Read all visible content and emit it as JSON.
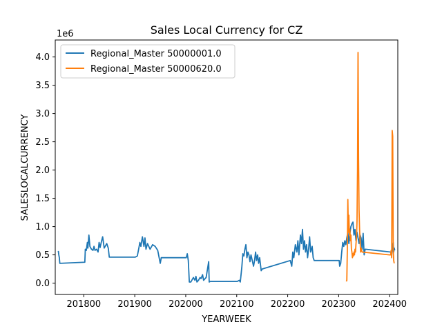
{
  "chart_data": {
    "type": "line",
    "title": "Sales Local Currency for CZ",
    "xlabel": "YEARWEEK",
    "ylabel": "SALESLOCALCURRENCY",
    "y_offset_label": "1e6",
    "xlim": [
      201744,
      202416
    ],
    "ylim": [
      -0.2,
      4.3
    ],
    "x_ticks": [
      201800,
      201900,
      202000,
      202100,
      202200,
      202300,
      202400
    ],
    "y_ticks": [
      0.0,
      0.5,
      1.0,
      1.5,
      2.0,
      2.5,
      3.0,
      3.5,
      4.0
    ],
    "y_tick_labels": [
      "0.0",
      "0.5",
      "1.0",
      "1.5",
      "2.0",
      "2.5",
      "3.0",
      "3.5",
      "4.0"
    ],
    "grid": false,
    "legend_position": "upper-left",
    "series": [
      {
        "name": "Regional_Master 50000001.0",
        "color": "#1f77b4",
        "points": [
          [
            201750,
            0.57
          ],
          [
            201751,
            0.5
          ],
          [
            201752,
            0.45
          ],
          [
            201753,
            0.35
          ],
          [
            201802,
            0.37
          ],
          [
            201803,
            0.6
          ],
          [
            201805,
            0.58
          ],
          [
            201807,
            0.72
          ],
          [
            201808,
            0.62
          ],
          [
            201810,
            0.85
          ],
          [
            201812,
            0.65
          ],
          [
            201815,
            0.6
          ],
          [
            201818,
            0.58
          ],
          [
            201820,
            0.65
          ],
          [
            201822,
            0.58
          ],
          [
            201825,
            0.6
          ],
          [
            201828,
            0.55
          ],
          [
            201830,
            0.72
          ],
          [
            201832,
            0.63
          ],
          [
            201835,
            0.75
          ],
          [
            201837,
            0.82
          ],
          [
            201840,
            0.62
          ],
          [
            201845,
            0.7
          ],
          [
            201848,
            0.62
          ],
          [
            201850,
            0.46
          ],
          [
            201852,
            0.46
          ],
          [
            201901,
            0.46
          ],
          [
            201905,
            0.48
          ],
          [
            201908,
            0.62
          ],
          [
            201910,
            0.72
          ],
          [
            201912,
            0.65
          ],
          [
            201915,
            0.82
          ],
          [
            201918,
            0.65
          ],
          [
            201920,
            0.8
          ],
          [
            201922,
            0.6
          ],
          [
            201925,
            0.7
          ],
          [
            201930,
            0.6
          ],
          [
            201935,
            0.68
          ],
          [
            201940,
            0.65
          ],
          [
            201945,
            0.58
          ],
          [
            201950,
            0.35
          ],
          [
            201952,
            0.45
          ],
          [
            202001,
            0.45
          ],
          [
            202003,
            0.52
          ],
          [
            202005,
            0.4
          ],
          [
            202007,
            0.02
          ],
          [
            202010,
            0.02
          ],
          [
            202015,
            0.1
          ],
          [
            202018,
            0.05
          ],
          [
            202020,
            0.12
          ],
          [
            202022,
            0.02
          ],
          [
            202025,
            0.05
          ],
          [
            202028,
            0.1
          ],
          [
            202030,
            0.08
          ],
          [
            202033,
            0.15
          ],
          [
            202035,
            0.05
          ],
          [
            202040,
            0.1
          ],
          [
            202045,
            0.38
          ],
          [
            202046,
            0.02
          ],
          [
            202048,
            0.03
          ],
          [
            202052,
            0.03
          ],
          [
            202101,
            0.03
          ],
          [
            202105,
            0.05
          ],
          [
            202107,
            0.02
          ],
          [
            202110,
            0.28
          ],
          [
            202112,
            0.52
          ],
          [
            202114,
            0.48
          ],
          [
            202116,
            0.6
          ],
          [
            202118,
            0.68
          ],
          [
            202120,
            0.45
          ],
          [
            202122,
            0.55
          ],
          [
            202124,
            0.5
          ],
          [
            202126,
            0.38
          ],
          [
            202128,
            0.5
          ],
          [
            202130,
            0.42
          ],
          [
            202133,
            0.3
          ],
          [
            202135,
            0.4
          ],
          [
            202137,
            0.55
          ],
          [
            202139,
            0.4
          ],
          [
            202141,
            0.5
          ],
          [
            202143,
            0.35
          ],
          [
            202145,
            0.45
          ],
          [
            202148,
            0.22
          ],
          [
            202150,
            0.25
          ],
          [
            202205,
            0.4
          ],
          [
            202208,
            0.3
          ],
          [
            202210,
            0.55
          ],
          [
            202212,
            0.45
          ],
          [
            202215,
            0.68
          ],
          [
            202218,
            0.55
          ],
          [
            202220,
            0.75
          ],
          [
            202222,
            0.5
          ],
          [
            202225,
            0.85
          ],
          [
            202227,
            0.7
          ],
          [
            202229,
            0.95
          ],
          [
            202231,
            0.6
          ],
          [
            202233,
            0.75
          ],
          [
            202235,
            0.55
          ],
          [
            202237,
            0.68
          ],
          [
            202239,
            0.45
          ],
          [
            202241,
            0.6
          ],
          [
            202243,
            0.82
          ],
          [
            202245,
            0.55
          ],
          [
            202248,
            0.65
          ],
          [
            202250,
            0.45
          ],
          [
            202252,
            0.4
          ],
          [
            202301,
            0.4
          ],
          [
            202302,
            0.3
          ],
          [
            202304,
            0.35
          ],
          [
            202306,
            0.55
          ],
          [
            202308,
            0.72
          ],
          [
            202310,
            0.65
          ],
          [
            202312,
            0.75
          ],
          [
            202314,
            0.68
          ],
          [
            202316,
            0.8
          ],
          [
            202318,
            0.9
          ],
          [
            202320,
            0.7
          ],
          [
            202322,
            0.88
          ],
          [
            202324,
            1.0
          ],
          [
            202326,
            1.05
          ],
          [
            202328,
            1.08
          ],
          [
            202330,
            0.85
          ],
          [
            202332,
            0.95
          ],
          [
            202334,
            0.75
          ],
          [
            202336,
            0.9
          ],
          [
            202338,
            0.8
          ],
          [
            202340,
            0.7
          ],
          [
            202342,
            0.85
          ],
          [
            202344,
            0.8
          ],
          [
            202346,
            0.6
          ],
          [
            202348,
            0.88
          ],
          [
            202350,
            0.5
          ],
          [
            202352,
            0.6
          ],
          [
            202402,
            0.55
          ],
          [
            202404,
            0.5
          ],
          [
            202405,
            0.6
          ],
          [
            202406,
            0.68
          ],
          [
            202407,
            0.72
          ],
          [
            202408,
            0.55
          ],
          [
            202409,
            0.62
          ],
          [
            202410,
            0.58
          ]
        ]
      },
      {
        "name": "Regional_Master 50000620.0",
        "color": "#ff7f0e",
        "points": [
          [
            202315,
            0.03
          ],
          [
            202316,
            0.05
          ],
          [
            202317,
            0.6
          ],
          [
            202318,
            1.48
          ],
          [
            202319,
            0.9
          ],
          [
            202320,
            1.2
          ],
          [
            202321,
            0.85
          ],
          [
            202322,
            0.95
          ],
          [
            202323,
            0.75
          ],
          [
            202324,
            0.85
          ],
          [
            202325,
            0.6
          ],
          [
            202326,
            0.55
          ],
          [
            202327,
            0.45
          ],
          [
            202328,
            0.52
          ],
          [
            202329,
            0.48
          ],
          [
            202330,
            0.55
          ],
          [
            202331,
            0.5
          ],
          [
            202332,
            0.6
          ],
          [
            202333,
            0.55
          ],
          [
            202334,
            0.7
          ],
          [
            202335,
            0.8
          ],
          [
            202336,
            1.1
          ],
          [
            202337,
            2.0
          ],
          [
            202338,
            4.08
          ],
          [
            202339,
            2.2
          ],
          [
            202340,
            1.3
          ],
          [
            202341,
            0.95
          ],
          [
            202342,
            0.75
          ],
          [
            202343,
            0.55
          ],
          [
            202344,
            0.62
          ],
          [
            202345,
            0.58
          ],
          [
            202346,
            0.55
          ],
          [
            202400,
            0.5
          ],
          [
            202402,
            0.5
          ],
          [
            202403,
            0.58
          ],
          [
            202404,
            0.45
          ],
          [
            202405,
            2.7
          ],
          [
            202406,
            2.6
          ],
          [
            202407,
            0.6
          ],
          [
            202408,
            0.4
          ],
          [
            202409,
            0.35
          ]
        ]
      }
    ]
  }
}
